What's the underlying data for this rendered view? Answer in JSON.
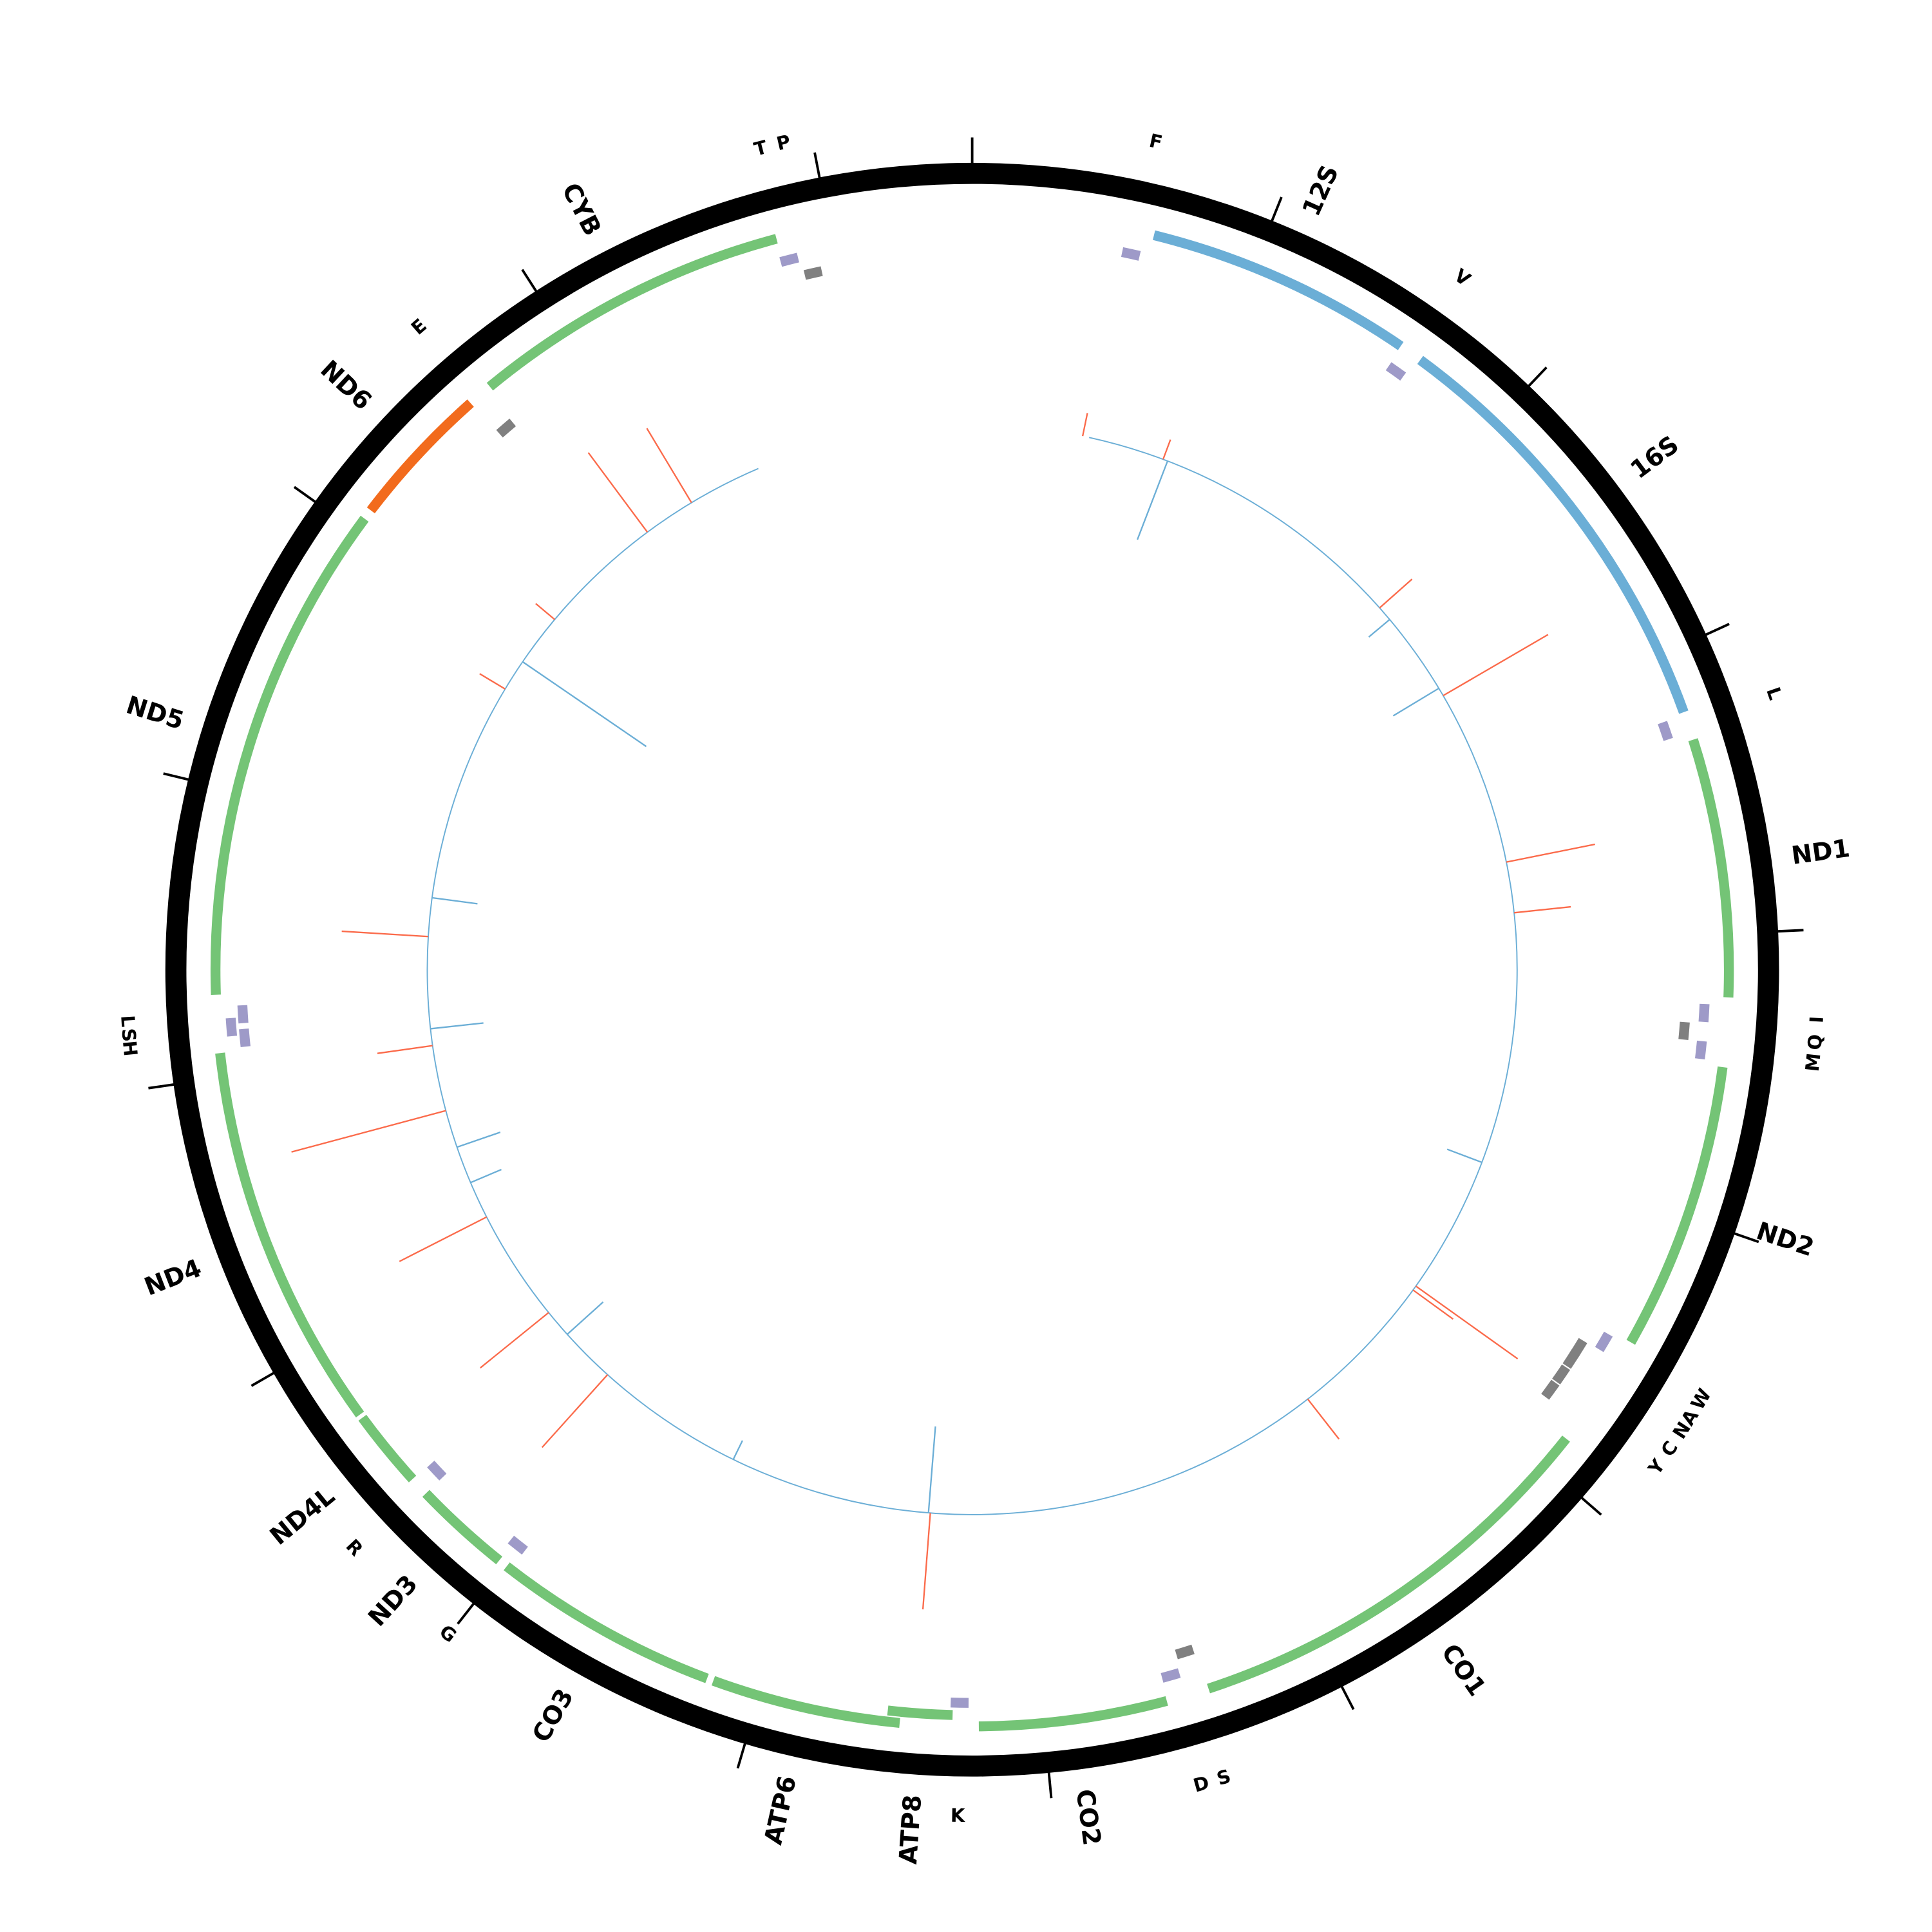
{
  "chart_data": {
    "type": "circular-genome-map",
    "genome_length_bp": 16500,
    "tick_interval_bp": 1000,
    "colors": {
      "backbone": "#000000",
      "rRNA": "#6baed6",
      "protein_plus": "#74c476",
      "protein_minus": "#f26b1d",
      "tRNA_plus": "#9e9ac8",
      "tRNA_minus": "#808080",
      "signal_positive": "#fb6a4a",
      "signal_negative": "#6baed6"
    },
    "genes": [
      {
        "name": "12S",
        "type": "rRNA",
        "start": 637,
        "end": 1581
      },
      {
        "name": "16S",
        "type": "rRNA",
        "start": 1664,
        "end": 3213
      },
      {
        "name": "ND1",
        "type": "protein_plus",
        "start": 3314,
        "end": 4221
      },
      {
        "name": "ND2",
        "type": "protein_plus",
        "start": 4464,
        "end": 5477
      },
      {
        "name": "CO1",
        "type": "protein_plus",
        "start": 5880,
        "end": 7416
      },
      {
        "name": "CO2",
        "type": "protein_plus",
        "start": 7567,
        "end": 8227
      },
      {
        "name": "ATP8",
        "type": "protein_plus",
        "start": 8319,
        "end": 8548,
        "inner": true
      },
      {
        "name": "ATP6",
        "type": "protein_plus",
        "start": 8502,
        "end": 9167
      },
      {
        "name": "CO3",
        "type": "protein_plus",
        "start": 9190,
        "end": 9990
      },
      {
        "name": "ND3",
        "type": "protein_plus",
        "start": 10023,
        "end": 10368
      },
      {
        "name": "ND4L",
        "type": "protein_plus",
        "start": 10436,
        "end": 10711
      },
      {
        "name": "ND4",
        "type": "protein_plus",
        "start": 10725,
        "end": 12085
      },
      {
        "name": "ND5",
        "type": "protein_plus",
        "start": 12288,
        "end": 14052
      },
      {
        "name": "ND6",
        "type": "protein_minus",
        "start": 14088,
        "end": 14597
      },
      {
        "name": "CYB",
        "type": "protein_plus",
        "start": 14685,
        "end": 15813
      }
    ],
    "trnas": [
      {
        "name": "F",
        "strand": "plus",
        "pos": 573
      },
      {
        "name": "V",
        "strand": "plus",
        "pos": 1618
      },
      {
        "name": "L",
        "strand": "plus",
        "pos": 3254
      },
      {
        "name": "I",
        "strand": "plus",
        "pos": 4280
      },
      {
        "name": "Q",
        "strand": "minus",
        "pos": 4350
      },
      {
        "name": "M",
        "strand": "plus",
        "pos": 4413
      },
      {
        "name": "W",
        "strand": "plus",
        "pos": 5523
      },
      {
        "name": "A",
        "strand": "minus",
        "pos": 5590
      },
      {
        "name": "N",
        "strand": "minus",
        "pos": 5637
      },
      {
        "name": "C",
        "strand": "minus",
        "pos": 5706
      },
      {
        "name": "Y",
        "strand": "minus",
        "pos": 5775
      },
      {
        "name": "S",
        "strand": "minus",
        "pos": 7457
      },
      {
        "name": "D",
        "strand": "plus",
        "pos": 7530
      },
      {
        "name": "K",
        "strand": "plus",
        "pos": 8295
      },
      {
        "name": "G",
        "strand": "plus",
        "pos": 10005
      },
      {
        "name": "R",
        "strand": "plus",
        "pos": 10400
      },
      {
        "name": "H",
        "strand": "plus",
        "pos": 12130
      },
      {
        "name": "S",
        "strand": "plus",
        "pos": 12172
      },
      {
        "name": "L",
        "strand": "plus",
        "pos": 12215
      },
      {
        "name": "E",
        "strand": "minus",
        "pos": 14634
      },
      {
        "name": "T",
        "strand": "plus",
        "pos": 15838
      },
      {
        "name": "P",
        "strand": "minus",
        "pos": 15911
      }
    ],
    "signal": {
      "range_bp": [
        568,
        15441
      ],
      "spikes": [
        {
          "pos": 536,
          "value": 19
        },
        {
          "pos": 940,
          "value": 17
        },
        {
          "pos": 963,
          "value": -68
        },
        {
          "pos": 2218,
          "value": 35
        },
        {
          "pos": 2292,
          "value": -22
        },
        {
          "pos": 2700,
          "value": -43
        },
        {
          "pos": 2741,
          "value": 98
        },
        {
          "pos": 3603,
          "value": 73
        },
        {
          "pos": 3850,
          "value": 46
        },
        {
          "pos": 5074,
          "value": -30
        },
        {
          "pos": 5752,
          "value": 101
        },
        {
          "pos": 5775,
          "value": 40
        },
        {
          "pos": 6508,
          "value": 41
        },
        {
          "pos": 8452,
          "value": 78
        },
        {
          "pos": 8461,
          "value": -70
        },
        {
          "pos": 9442,
          "value": -17
        },
        {
          "pos": 10175,
          "value": 79
        },
        {
          "pos": 10450,
          "value": -39
        },
        {
          "pos": 10588,
          "value": 71
        },
        {
          "pos": 11138,
          "value": 79
        },
        {
          "pos": 11321,
          "value": -27
        },
        {
          "pos": 11504,
          "value": -37
        },
        {
          "pos": 11688,
          "value": 129
        },
        {
          "pos": 12008,
          "value": 45
        },
        {
          "pos": 12090,
          "value": -43
        },
        {
          "pos": 12535,
          "value": 70
        },
        {
          "pos": 12723,
          "value": -37
        },
        {
          "pos": 13796,
          "value": 24
        },
        {
          "pos": 13952,
          "value": -121
        },
        {
          "pos": 14208,
          "value": 20
        },
        {
          "pos": 14823,
          "value": 80
        },
        {
          "pos": 15079,
          "value": 70
        }
      ]
    }
  }
}
